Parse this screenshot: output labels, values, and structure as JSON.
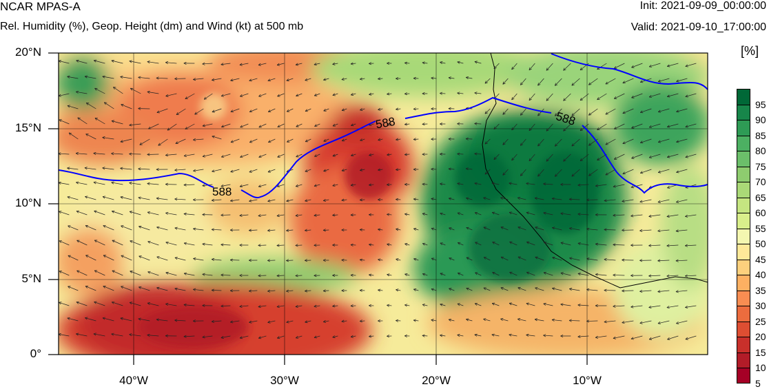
{
  "header": {
    "model": "NCAR MPAS-A",
    "field": "Rel. Humidity (%), Geop. Height (dm) and Wind (kt) at 500 mb",
    "init": "Init: 2021-09-09_00:00:00",
    "valid": "Valid: 2021-09-10_17:00:00"
  },
  "axes": {
    "lat_labels": [
      "20°N",
      "15°N",
      "10°N",
      "5°N",
      "0°"
    ],
    "lon_labels": [
      "40°W",
      "30°W",
      "20°W",
      "10°W"
    ]
  },
  "colorbar": {
    "units": "[%]",
    "ticks": [
      "95",
      "90",
      "85",
      "80",
      "75",
      "70",
      "65",
      "60",
      "55",
      "50",
      "45",
      "40",
      "35",
      "30",
      "25",
      "20",
      "15",
      "10",
      "5"
    ],
    "colors": [
      "#006837",
      "#17864a",
      "#2e9b55",
      "#4cb062",
      "#6bbf6a",
      "#8ecc6f",
      "#aad977",
      "#c5e581",
      "#d9ef8b",
      "#f4f7b0",
      "#fee999",
      "#fdd07d",
      "#fdb062",
      "#f88d52",
      "#ec6c3e",
      "#de4e32",
      "#c8302b",
      "#b21c28",
      "#a50026"
    ]
  },
  "map": {
    "contour_label": "588",
    "contour_color": "#0000ff"
  }
}
